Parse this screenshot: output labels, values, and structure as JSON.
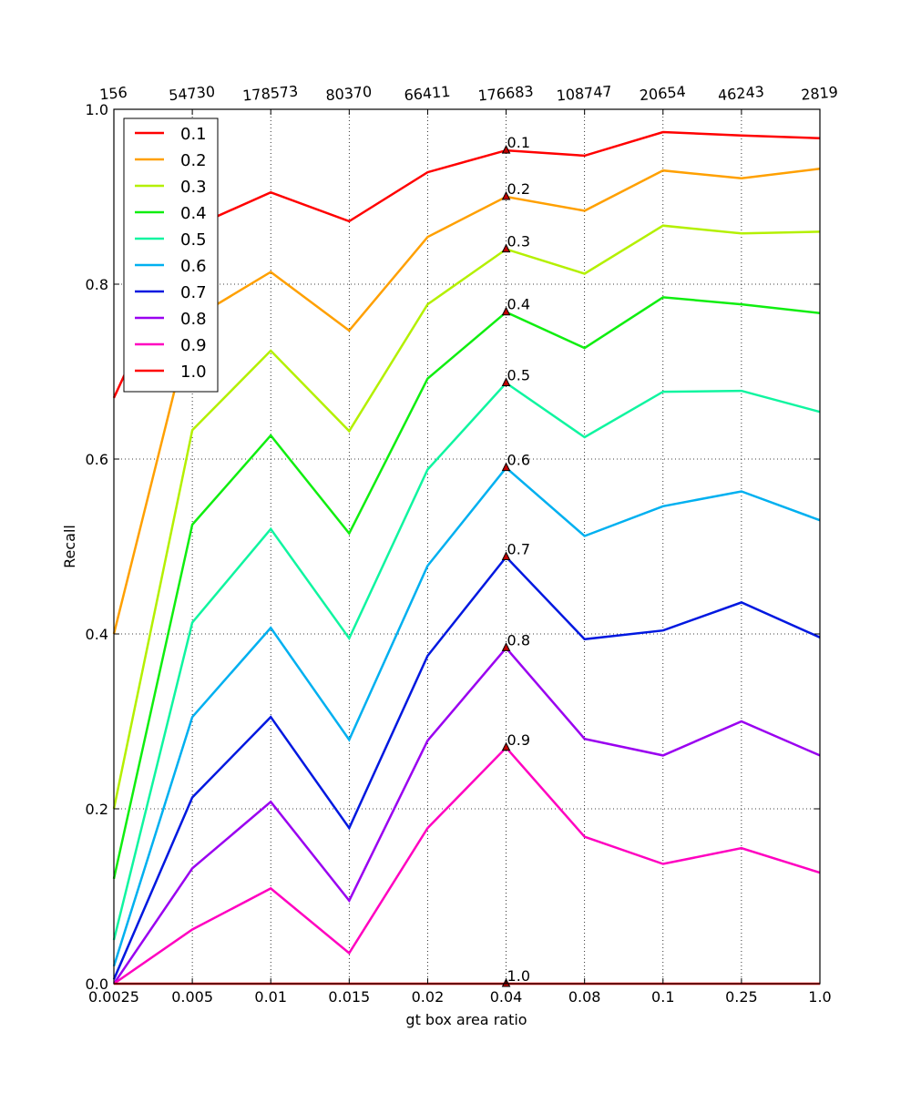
{
  "chart_data": {
    "type": "line",
    "xlabel": "gt box area ratio",
    "ylabel": "Recall",
    "ylim": [
      0.0,
      1.0
    ],
    "yticks": [
      "0.0",
      "0.2",
      "0.4",
      "0.6",
      "0.8",
      "1.0"
    ],
    "categories": [
      "0.0025",
      "0.005",
      "0.01",
      "0.015",
      "0.02",
      "0.04",
      "0.08",
      "0.1",
      "0.25",
      "1.0"
    ],
    "top_categories": [
      "156",
      "54730",
      "178573",
      "80370",
      "66411",
      "176683",
      "108747",
      "20654",
      "46243",
      "2819"
    ],
    "grid": true,
    "legend_position": "upper-left",
    "annotation_category": "0.04",
    "series": [
      {
        "name": "0.1",
        "color": "#ff0000",
        "values": [
          0.67,
          0.865,
          0.905,
          0.872,
          0.928,
          0.953,
          0.947,
          0.974,
          0.97,
          0.967
        ]
      },
      {
        "name": "0.2",
        "color": "#ffa000",
        "values": [
          0.4,
          0.76,
          0.814,
          0.747,
          0.854,
          0.9,
          0.884,
          0.93,
          0.921,
          0.932
        ]
      },
      {
        "name": "0.3",
        "color": "#b4f000",
        "values": [
          0.2,
          0.633,
          0.724,
          0.632,
          0.777,
          0.84,
          0.812,
          0.867,
          0.858,
          0.86
        ]
      },
      {
        "name": "0.4",
        "color": "#10ee10",
        "values": [
          0.12,
          0.525,
          0.627,
          0.515,
          0.692,
          0.768,
          0.727,
          0.785,
          0.777,
          0.767
        ]
      },
      {
        "name": "0.5",
        "color": "#10f5a0",
        "values": [
          0.05,
          0.413,
          0.52,
          0.395,
          0.588,
          0.687,
          0.625,
          0.677,
          0.678,
          0.654
        ]
      },
      {
        "name": "0.6",
        "color": "#00b0f0",
        "values": [
          0.02,
          0.305,
          0.407,
          0.279,
          0.478,
          0.59,
          0.512,
          0.546,
          0.563,
          0.53
        ]
      },
      {
        "name": "0.7",
        "color": "#0018e0",
        "values": [
          0.005,
          0.213,
          0.305,
          0.178,
          0.375,
          0.488,
          0.394,
          0.404,
          0.436,
          0.396
        ]
      },
      {
        "name": "0.8",
        "color": "#9a00f0",
        "values": [
          0.0,
          0.132,
          0.208,
          0.095,
          0.278,
          0.384,
          0.28,
          0.261,
          0.3,
          0.261
        ]
      },
      {
        "name": "0.9",
        "color": "#ff00c0",
        "values": [
          0.0,
          0.062,
          0.109,
          0.035,
          0.178,
          0.27,
          0.168,
          0.137,
          0.155,
          0.127
        ]
      },
      {
        "name": "1.0",
        "color": "#ff0000",
        "values": [
          0.0,
          0.0,
          0.0,
          0.0,
          0.0,
          0.0,
          0.0,
          0.0,
          0.0,
          0.0
        ]
      }
    ]
  }
}
